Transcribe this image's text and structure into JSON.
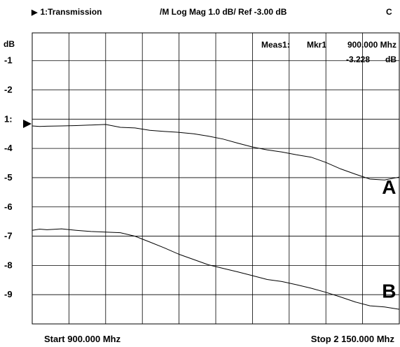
{
  "header": {
    "channel": "1:Transmission",
    "format": "/M Log Mag  1.0 dB/ Ref -3.00 dB",
    "status": "C"
  },
  "marker": {
    "label": "Meas1:",
    "name": "Mkr1",
    "frequency": "900.000  Mhz",
    "value": "-3.228",
    "unit": "dB"
  },
  "ref_marker_label": "1:",
  "start_label": "Start 900.000 Mhz",
  "stop_label": "Stop 2  150.000 Mhz",
  "chart_data": {
    "type": "line",
    "ylabel": "dB",
    "ylim": [
      -10.0,
      -0.05
    ],
    "xlim_mhz": [
      900,
      2150
    ],
    "grid": true,
    "reference_level_db": -3.0,
    "yticks": [
      {
        "value": -1,
        "label": "-1"
      },
      {
        "value": -2,
        "label": "-2"
      },
      {
        "value": -3,
        "label": "1:"
      },
      {
        "value": -4,
        "label": "-4"
      },
      {
        "value": -5,
        "label": "-5"
      },
      {
        "value": -6,
        "label": "-6"
      },
      {
        "value": -7,
        "label": "-7"
      },
      {
        "value": -8,
        "label": "-8"
      },
      {
        "value": -9,
        "label": "-9"
      }
    ],
    "series": [
      {
        "name": "A",
        "color": "#000000",
        "x": [
          900,
          925,
          950,
          1000,
          1050,
          1100,
          1150,
          1200,
          1250,
          1300,
          1350,
          1400,
          1450,
          1500,
          1550,
          1600,
          1650,
          1700,
          1750,
          1800,
          1850,
          1900,
          1950,
          2000,
          2050,
          2100,
          2150
        ],
        "y": [
          -3.23,
          -3.25,
          -3.24,
          -3.23,
          -3.22,
          -3.2,
          -3.18,
          -3.28,
          -3.3,
          -3.38,
          -3.42,
          -3.45,
          -3.5,
          -3.58,
          -3.68,
          -3.82,
          -3.95,
          -4.05,
          -4.12,
          -4.22,
          -4.3,
          -4.48,
          -4.7,
          -4.88,
          -5.05,
          -5.08,
          -4.98
        ]
      },
      {
        "name": "B",
        "color": "#000000",
        "x": [
          900,
          925,
          950,
          1000,
          1050,
          1100,
          1150,
          1200,
          1250,
          1300,
          1350,
          1400,
          1450,
          1500,
          1550,
          1600,
          1650,
          1700,
          1750,
          1800,
          1850,
          1900,
          1950,
          2000,
          2050,
          2100,
          2150
        ],
        "y": [
          -6.8,
          -6.76,
          -6.78,
          -6.75,
          -6.8,
          -6.84,
          -6.86,
          -6.88,
          -7.0,
          -7.2,
          -7.4,
          -7.62,
          -7.8,
          -7.98,
          -8.1,
          -8.22,
          -8.35,
          -8.48,
          -8.55,
          -8.66,
          -8.78,
          -8.92,
          -9.08,
          -9.25,
          -9.38,
          -9.42,
          -9.5
        ]
      }
    ],
    "trace_labels": [
      {
        "text": "A",
        "x": 2115,
        "y": -5.55
      },
      {
        "text": "B",
        "x": 2115,
        "y": -9.1
      }
    ]
  }
}
